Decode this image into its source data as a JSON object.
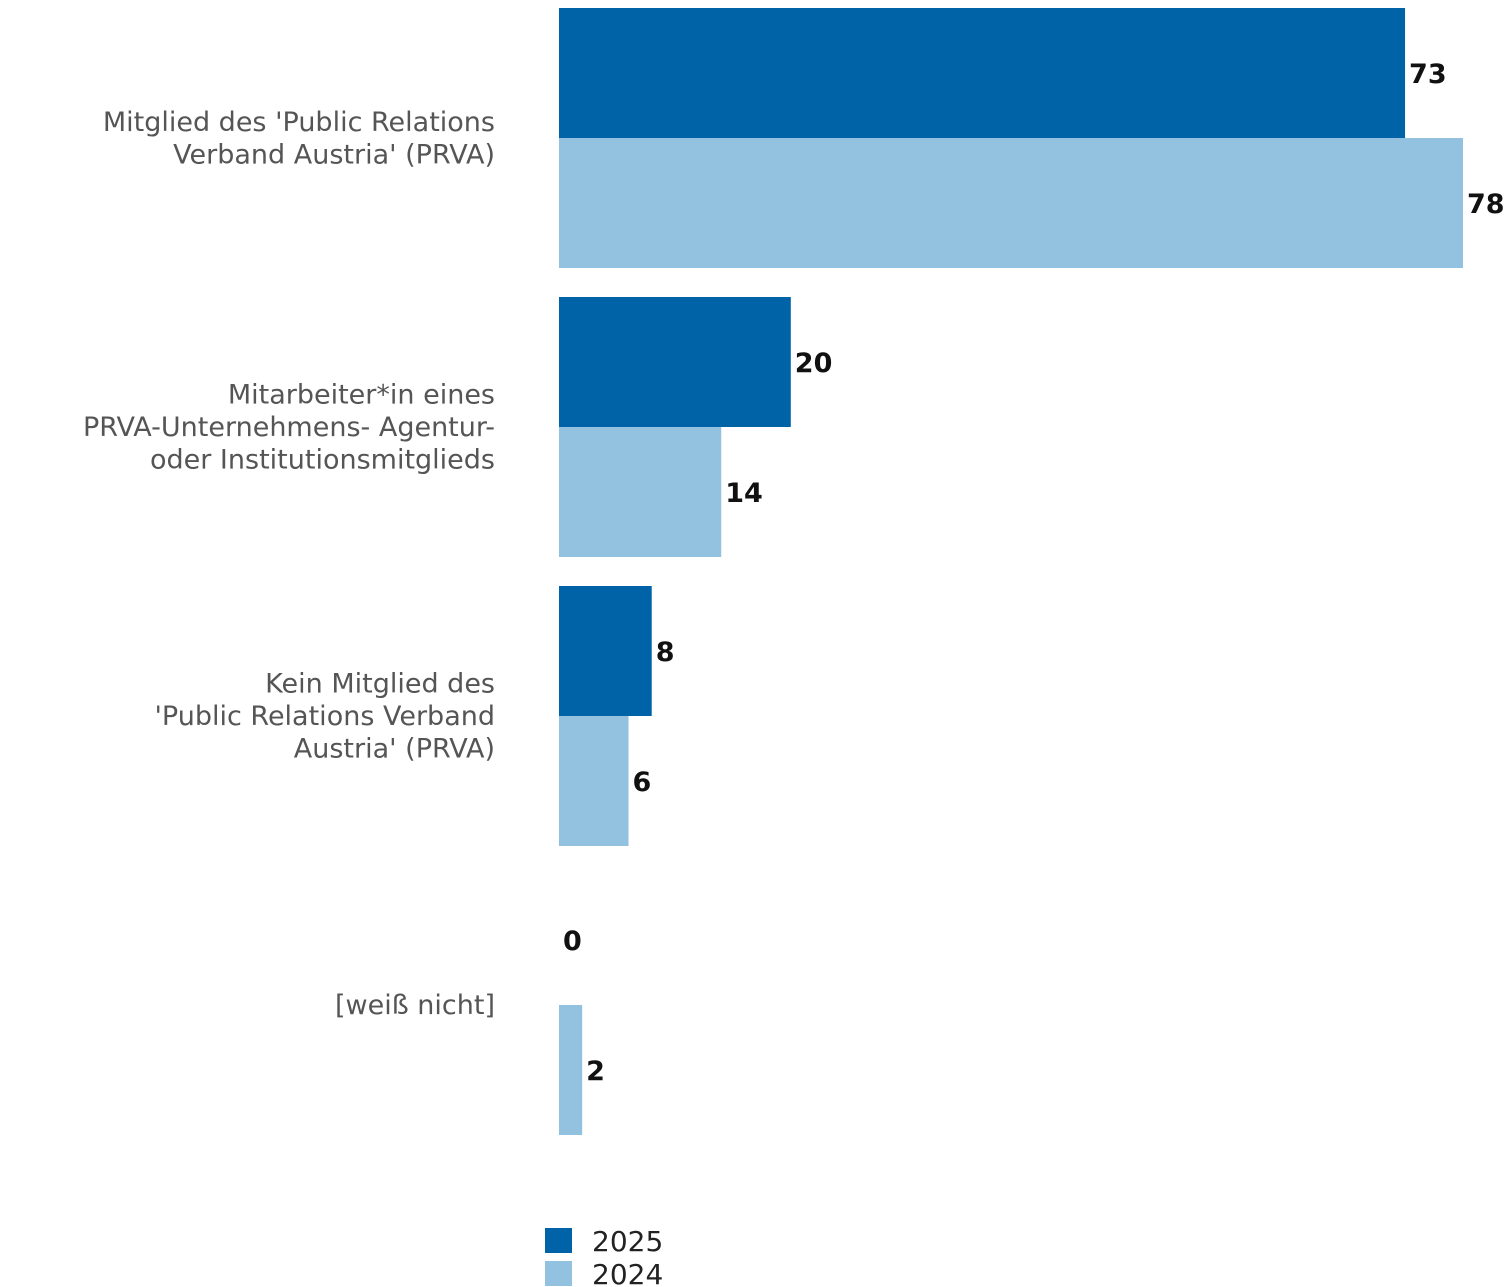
{
  "chart_data": {
    "type": "bar",
    "orientation": "horizontal",
    "categories": [
      [
        "Mitglied des 'Public Relations",
        "Verband Austria' (PRVA)"
      ],
      [
        "Mitarbeiter*in eines",
        "PRVA-Unternehmens- Agentur-",
        "oder Institutionsmitglieds"
      ],
      [
        "Kein Mitglied des",
        "'Public Relations Verband",
        "Austria' (PRVA)"
      ],
      [
        "[weiß nicht]"
      ]
    ],
    "series": [
      {
        "name": "2025",
        "values": [
          73,
          20,
          8,
          0
        ],
        "color": "#0063A8"
      },
      {
        "name": "2024",
        "values": [
          78,
          14,
          6,
          2
        ],
        "color": "#93C2E0"
      }
    ],
    "xlim": [
      0,
      78
    ],
    "grid": false,
    "legend_position": "bottom-center",
    "data_labels": true
  }
}
